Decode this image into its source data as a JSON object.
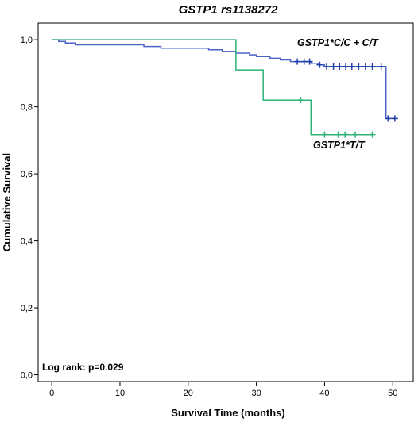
{
  "chart_data": {
    "type": "line",
    "title": "GSTP1 rs1138272",
    "xlabel": "Survival Time (months)",
    "ylabel": "Cumulative Survival",
    "xlim": [
      -2,
      53
    ],
    "ylim": [
      -0.02,
      1.05
    ],
    "x_ticks": [
      0,
      10,
      20,
      30,
      40,
      50
    ],
    "x_tick_labels": [
      "0",
      "10",
      "20",
      "30",
      "40",
      "50"
    ],
    "y_ticks": [
      0.0,
      0.2,
      0.4,
      0.6,
      0.8,
      1.0
    ],
    "y_tick_labels": [
      "0,0",
      "0,2",
      "0,4",
      "0,6",
      "0,8",
      "1,0"
    ],
    "grid": false,
    "annotation": "Log rank: p=0.029",
    "series": [
      {
        "name": "GSTP1*C/C + C/T",
        "color": "#4a63c4",
        "censor_color": "#1f3fa8",
        "steps": [
          [
            0,
            1.0
          ],
          [
            1,
            0.995
          ],
          [
            2,
            0.99
          ],
          [
            3.5,
            0.985
          ],
          [
            13.5,
            0.98
          ],
          [
            16,
            0.975
          ],
          [
            23,
            0.97
          ],
          [
            25,
            0.965
          ],
          [
            27,
            0.96
          ],
          [
            29,
            0.955
          ],
          [
            30,
            0.95
          ],
          [
            32,
            0.945
          ],
          [
            33.5,
            0.94
          ],
          [
            35,
            0.935
          ],
          [
            38,
            0.93
          ],
          [
            39,
            0.925
          ],
          [
            40,
            0.92
          ],
          [
            49,
            0.765
          ],
          [
            50.5,
            0.765
          ]
        ],
        "censored": [
          [
            36,
            0.935
          ],
          [
            37,
            0.935
          ],
          [
            37.8,
            0.935
          ],
          [
            39.3,
            0.925
          ],
          [
            40.3,
            0.92
          ],
          [
            41.3,
            0.92
          ],
          [
            42.2,
            0.92
          ],
          [
            43.1,
            0.92
          ],
          [
            44,
            0.92
          ],
          [
            45,
            0.92
          ],
          [
            46,
            0.92
          ],
          [
            47,
            0.92
          ],
          [
            48.3,
            0.92
          ],
          [
            49.3,
            0.765
          ],
          [
            50.3,
            0.765
          ]
        ]
      },
      {
        "name": "GSTP1*T/T",
        "color": "#2db37a",
        "censor_color": "#2db37a",
        "steps": [
          [
            0,
            1.0
          ],
          [
            27,
            0.91
          ],
          [
            31,
            0.82
          ],
          [
            38,
            0.717
          ],
          [
            47,
            0.717
          ]
        ],
        "censored": [
          [
            36.5,
            0.82
          ],
          [
            40,
            0.717
          ],
          [
            42,
            0.717
          ],
          [
            43,
            0.717
          ],
          [
            44.5,
            0.717
          ],
          [
            47,
            0.717
          ]
        ]
      }
    ]
  }
}
